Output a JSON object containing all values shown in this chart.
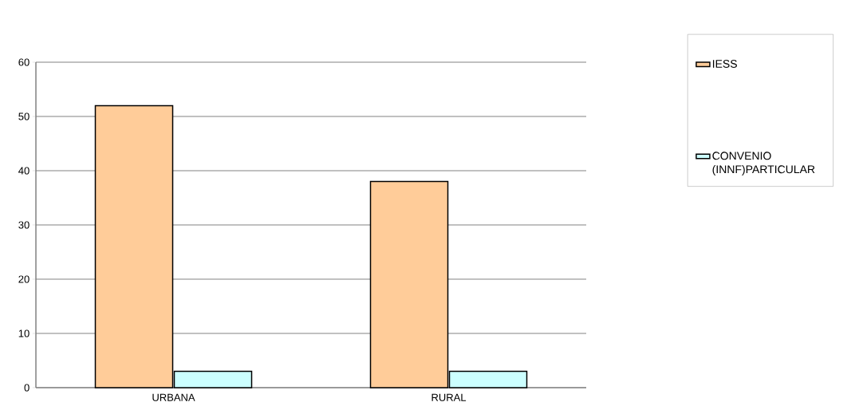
{
  "chart_data": {
    "type": "bar",
    "categories": [
      "URBANA",
      "RURAL"
    ],
    "series": [
      {
        "name": "IESS",
        "color": "#ffcc99",
        "values": [
          52,
          38
        ]
      },
      {
        "name": "CONVENIO (INNF)PARTICULAR",
        "color": "#ccffff",
        "values": [
          3,
          3
        ]
      }
    ],
    "ylim": [
      0,
      60
    ],
    "yticks": [
      0,
      10,
      20,
      30,
      40,
      50,
      60
    ],
    "grid": "y",
    "legend": "right"
  }
}
